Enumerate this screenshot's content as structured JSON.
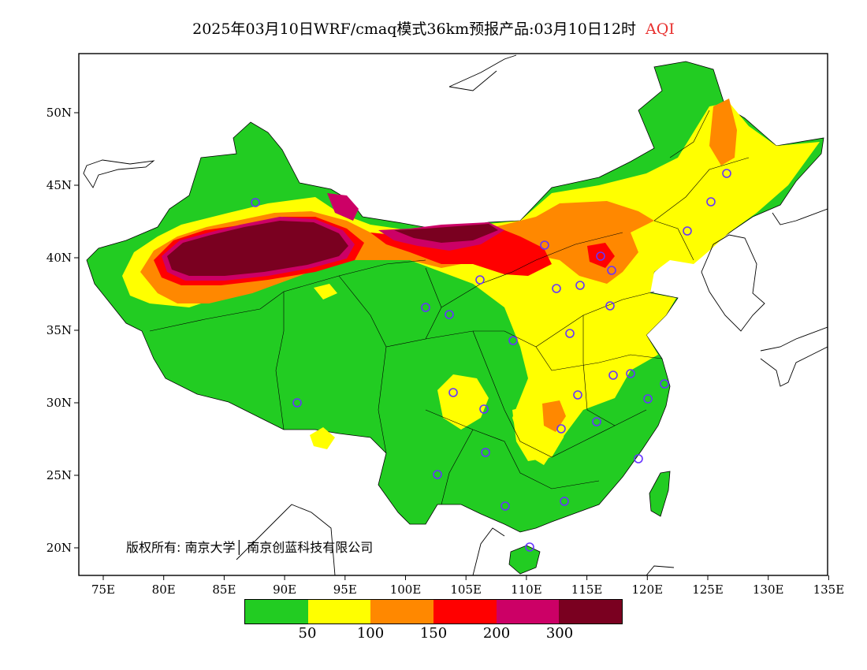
{
  "title": {
    "text": "2025年03月10日WRF/cmaq模式36km预报产品:03月10日12时",
    "variable": "AQI"
  },
  "map": {
    "lat_ticks": [
      "50N",
      "45N",
      "40N",
      "35N",
      "30N",
      "25N",
      "20N"
    ],
    "lon_ticks": [
      "75E",
      "80E",
      "85E",
      "90E",
      "95E",
      "100E",
      "105E",
      "110E",
      "115E",
      "120E",
      "125E",
      "130E",
      "135E"
    ]
  },
  "copyright": "版权所有: 南京大学│ 南京创蓝科技有限公司",
  "legend": {
    "colors": [
      "#22cc22",
      "#ffff00",
      "#ff8800",
      "#ff0000",
      "#cc0066",
      "#7a0020"
    ],
    "labels": [
      "50",
      "100",
      "150",
      "200",
      "300"
    ]
  },
  "colors": {
    "good": "#22cc22",
    "moderate": "#ffff00",
    "unhealthy_sensitive": "#ff8800",
    "unhealthy": "#ff0000",
    "very_unhealthy": "#cc0066",
    "hazardous": "#7a0020",
    "station_marker": "#6633ff"
  }
}
